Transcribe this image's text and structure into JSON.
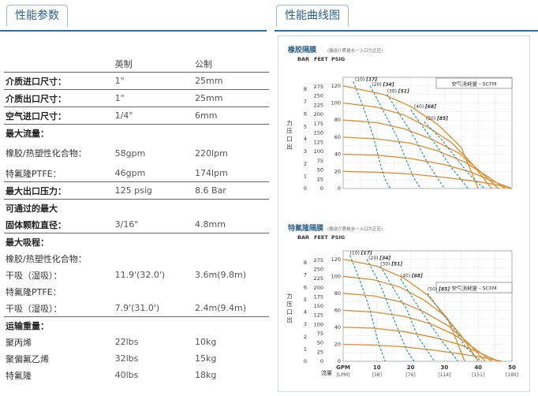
{
  "tabs": {
    "left": "性能参数",
    "right": "性能曲线图"
  },
  "table": {
    "headers": [
      "",
      "英制",
      "公制"
    ],
    "rows": [
      {
        "label": "介质进口尺寸：",
        "imperial": "1\"",
        "metric": "25mm",
        "bold": true,
        "sep": true
      },
      {
        "label": "介质出口尺寸：",
        "imperial": "1\"",
        "metric": "25mm",
        "bold": true,
        "sep": true
      },
      {
        "label": "空气进口尺寸：",
        "imperial": "1/4\"",
        "metric": "6mm",
        "bold": true,
        "sep": true
      },
      {
        "label": "最大流量：",
        "imperial": "",
        "metric": "",
        "bold": true,
        "sep": false
      },
      {
        "label": "橡胶/热塑性化合物：",
        "imperial": "58gpm",
        "metric": "220lpm",
        "bold": false,
        "sep": false,
        "multi": true
      },
      {
        "label": "特氟隆PTFE：",
        "imperial": "46gpm",
        "metric": "174lpm",
        "bold": false,
        "sep": true
      },
      {
        "label": "最大出口压力：",
        "imperial": "125 psig",
        "metric": "8.6 Bar",
        "bold": true,
        "sep": true
      },
      {
        "label": "可通过的最大",
        "imperial": "",
        "metric": "",
        "bold": true,
        "sep": false
      },
      {
        "label": "固体颗粒直径：",
        "imperial": "3/16\"",
        "metric": "4.8mm",
        "bold": true,
        "sep": true
      },
      {
        "label": "最大吸程：",
        "imperial": "",
        "metric": "",
        "bold": true,
        "sep": false
      },
      {
        "label": "橡胶/热塑性化合物：",
        "imperial": "",
        "metric": "",
        "bold": false,
        "sep": false
      },
      {
        "label": "干吸（湿吸）：",
        "imperial": "11.9'(32.0')",
        "metric": "3.6m(9.8m)",
        "bold": false,
        "sep": false
      },
      {
        "label": "特氟隆PTFE：",
        "imperial": "",
        "metric": "",
        "bold": false,
        "sep": false
      },
      {
        "label": "干吸（湿吸）：",
        "imperial": "7.9'(31.0')",
        "metric": "2.4m(9.4m)",
        "bold": false,
        "sep": true
      },
      {
        "label": "运输重量：",
        "imperial": "",
        "metric": "",
        "bold": true,
        "sep": false
      },
      {
        "label": "聚丙烯",
        "imperial": "22lbs",
        "metric": "10kg",
        "bold": false,
        "sep": false
      },
      {
        "label": "聚偏氟乙烯",
        "imperial": "32lbs",
        "metric": "15kg",
        "bold": false,
        "sep": false
      },
      {
        "label": "特氟隆",
        "imperial": "40lbs",
        "metric": "18kg",
        "bold": false,
        "sep": false
      }
    ]
  },
  "chart_data": [
    {
      "type": "line",
      "title": "橡胶隔膜",
      "subtitle": "(输送介质是水－入口为正压)",
      "units_header": [
        "BAR",
        "FEET",
        "PSIG"
      ],
      "ylabel": "出口压力",
      "legend": "空气消耗量 - SCFM",
      "bar_ticks": [
        "0",
        "1",
        "2",
        "3",
        "4",
        "5",
        "6",
        "7",
        "8"
      ],
      "feet_ticks": [
        "0",
        "25",
        "50",
        "75",
        "100",
        "125",
        "150",
        "175",
        "200",
        "225",
        "250",
        "275"
      ],
      "psig_ticks": [
        "0",
        "20",
        "40",
        "60",
        "80",
        "100",
        "120"
      ],
      "ylim": [
        0,
        130
      ],
      "xlim": [
        0,
        50
      ],
      "air_labels": [
        {
          "text": "(10)",
          "bold": "[17]",
          "x": 3.5,
          "y": 126
        },
        {
          "text": "(20)",
          "bold": "[34]",
          "x": 8.5,
          "y": 120
        },
        {
          "text": "(30)",
          "bold": "[51]",
          "x": 13,
          "y": 112
        },
        {
          "text": "(40)",
          "bold": "[68]",
          "x": 21,
          "y": 94
        },
        {
          "text": "(50)",
          "bold": "[85]",
          "x": 24.5,
          "y": 80
        }
      ],
      "pressure_curves": [
        {
          "x": [
            0,
            12,
            20,
            28,
            35,
            40
          ],
          "y": [
            120,
            110,
            96,
            75,
            48,
            0
          ]
        },
        {
          "x": [
            0,
            10,
            18,
            25,
            32,
            38,
            44
          ],
          "y": [
            100,
            95,
            86,
            72,
            54,
            30,
            0
          ]
        },
        {
          "x": [
            0,
            10,
            18,
            26,
            34,
            40,
            46
          ],
          "y": [
            80,
            77,
            70,
            58,
            42,
            22,
            0
          ]
        },
        {
          "x": [
            0,
            10,
            20,
            28,
            36,
            42,
            48
          ],
          "y": [
            60,
            58,
            53,
            44,
            31,
            16,
            0
          ]
        },
        {
          "x": [
            0,
            10,
            20,
            30,
            38,
            44,
            50
          ],
          "y": [
            40,
            39,
            35,
            28,
            19,
            9,
            0
          ]
        },
        {
          "x": [
            0,
            10,
            20,
            30,
            40,
            46,
            50
          ],
          "y": [
            20,
            19,
            17,
            13,
            8,
            4,
            0
          ]
        }
      ],
      "air_curves": [
        {
          "x": [
            3,
            6,
            9,
            11,
            12.5,
            14
          ],
          "y": [
            125,
            95,
            60,
            28,
            10,
            0
          ]
        },
        {
          "x": [
            8,
            12,
            16,
            19,
            21,
            23
          ],
          "y": [
            120,
            90,
            60,
            30,
            12,
            0
          ]
        },
        {
          "x": [
            13,
            17,
            21,
            25,
            28,
            30
          ],
          "y": [
            110,
            85,
            60,
            30,
            12,
            0
          ]
        },
        {
          "x": [
            20,
            24,
            28,
            32,
            35,
            37
          ],
          "y": [
            92,
            70,
            48,
            25,
            10,
            0
          ]
        },
        {
          "x": [
            24,
            29,
            33,
            37,
            40,
            42
          ],
          "y": [
            78,
            58,
            38,
            18,
            6,
            0
          ]
        }
      ]
    },
    {
      "type": "line",
      "title": "特氟隆隔膜",
      "subtitle": "(输送介质是水－入口为正压)",
      "units_header": [
        "BAR",
        "FEET",
        "PSIG"
      ],
      "ylabel": "出口压力",
      "legend": "空气消耗量 - SCFM",
      "xlabel": "流量",
      "bar_ticks": [
        "0",
        "1",
        "2",
        "3",
        "4",
        "5",
        "6",
        "7",
        "8"
      ],
      "feet_ticks": [
        "0",
        "25",
        "50",
        "75",
        "100",
        "125",
        "150",
        "175",
        "200",
        "225",
        "250",
        "275"
      ],
      "psig_ticks": [
        "0",
        "20",
        "40",
        "60",
        "80",
        "100",
        "120"
      ],
      "gpm_ticks": [
        "GPM",
        "10",
        "20",
        "30",
        "40",
        "50"
      ],
      "lpm_ticks": [
        "[LPM]",
        "[38]",
        "[76]",
        "[114]",
        "[151]",
        "[189]"
      ],
      "ylim": [
        0,
        130
      ],
      "xlim": [
        0,
        50
      ],
      "air_labels": [
        {
          "text": "(10)",
          "bold": "[17]",
          "x": 2,
          "y": 126
        },
        {
          "text": "(20)",
          "bold": "[34]",
          "x": 7.5,
          "y": 120
        },
        {
          "text": "(30)",
          "bold": "[51]",
          "x": 11,
          "y": 113
        },
        {
          "text": "(40)",
          "bold": "[68]",
          "x": 17,
          "y": 99
        },
        {
          "text": "(50)",
          "bold": "[85]",
          "x": 25,
          "y": 83
        }
      ],
      "pressure_curves": [
        {
          "x": [
            0,
            10,
            18,
            25,
            31,
            36
          ],
          "y": [
            120,
            112,
            98,
            78,
            50,
            0
          ]
        },
        {
          "x": [
            0,
            9,
            17,
            24,
            30,
            35,
            40
          ],
          "y": [
            100,
            96,
            87,
            72,
            54,
            30,
            0
          ]
        },
        {
          "x": [
            0,
            9,
            17,
            24,
            31,
            37,
            42
          ],
          "y": [
            80,
            77,
            70,
            58,
            42,
            22,
            0
          ]
        },
        {
          "x": [
            0,
            9,
            18,
            26,
            33,
            39,
            44
          ],
          "y": [
            60,
            58,
            53,
            44,
            31,
            15,
            0
          ]
        },
        {
          "x": [
            0,
            9,
            18,
            27,
            35,
            41,
            46
          ],
          "y": [
            40,
            39,
            35,
            28,
            19,
            9,
            0
          ]
        },
        {
          "x": [
            0,
            9,
            18,
            27,
            36,
            42,
            47
          ],
          "y": [
            20,
            19,
            17,
            13,
            8,
            4,
            0
          ]
        }
      ],
      "air_curves": [
        {
          "x": [
            2,
            5,
            8,
            10,
            11.5,
            12.5
          ],
          "y": [
            125,
            95,
            60,
            28,
            10,
            0
          ]
        },
        {
          "x": [
            7,
            11,
            14,
            17,
            19,
            21
          ],
          "y": [
            120,
            90,
            60,
            30,
            12,
            0
          ]
        },
        {
          "x": [
            11,
            15,
            19,
            22,
            25,
            27
          ],
          "y": [
            112,
            85,
            60,
            30,
            12,
            0
          ]
        },
        {
          "x": [
            17,
            21,
            25,
            29,
            32,
            34
          ],
          "y": [
            97,
            72,
            48,
            25,
            10,
            0
          ]
        },
        {
          "x": [
            25,
            29,
            33,
            36,
            39,
            41
          ],
          "y": [
            80,
            58,
            38,
            18,
            6,
            0
          ]
        }
      ]
    }
  ]
}
